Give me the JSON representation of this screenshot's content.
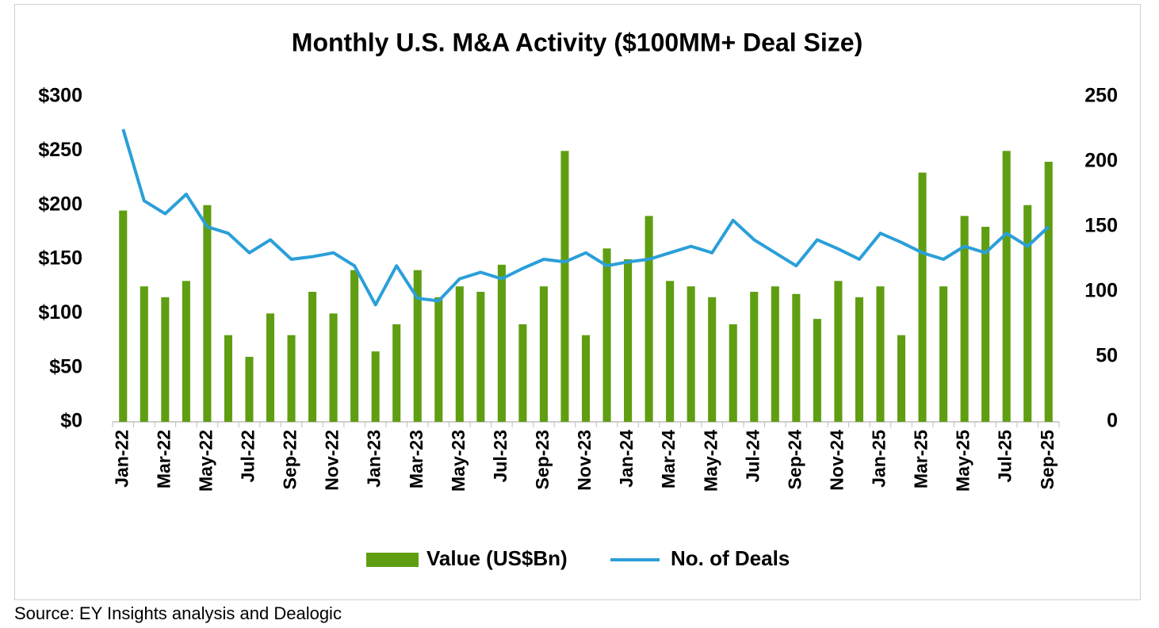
{
  "chart_data": {
    "type": "combo",
    "title": "Monthly U.S. M&A Activity ($100MM+ Deal Size)",
    "source": "Source: EY Insights analysis and Dealogic",
    "categories": [
      "Jan-22",
      null,
      "Mar-22",
      null,
      "May-22",
      null,
      "Jul-22",
      null,
      "Sep-22",
      null,
      "Nov-22",
      null,
      "Jan-23",
      null,
      "Mar-23",
      null,
      "May-23",
      null,
      "Jul-23",
      null,
      "Sep-23",
      null,
      "Nov-23",
      null,
      "Jan-24",
      null,
      "Mar-24",
      null,
      "May-24",
      null,
      "Jul-24",
      null,
      "Sep-24",
      null,
      "Nov-24",
      null,
      "Jan-25",
      null,
      "Mar-25",
      null,
      "May-25",
      null,
      "Jul-25",
      null,
      "Sep-25"
    ],
    "series": [
      {
        "name": "Value (US$Bn)",
        "type": "bar",
        "color": "#5f9e12",
        "values": [
          195,
          125,
          115,
          130,
          200,
          80,
          60,
          100,
          80,
          120,
          100,
          140,
          65,
          90,
          140,
          115,
          125,
          120,
          145,
          90,
          125,
          250,
          80,
          160,
          150,
          190,
          130,
          125,
          115,
          90,
          120,
          125,
          118,
          95,
          130,
          115,
          125,
          80,
          230,
          125,
          190,
          180,
          250,
          200,
          240
        ]
      },
      {
        "name": "No. of Deals",
        "type": "line",
        "axis": "y2",
        "color": "#2b9fd9",
        "values": [
          225,
          170,
          160,
          175,
          150,
          145,
          130,
          140,
          125,
          127,
          130,
          120,
          90,
          120,
          95,
          93,
          110,
          115,
          110,
          118,
          125,
          123,
          130,
          120,
          123,
          125,
          130,
          135,
          130,
          155,
          140,
          130,
          120,
          140,
          133,
          125,
          145,
          138,
          130,
          125,
          135,
          130,
          145,
          135,
          150
        ]
      }
    ],
    "ylim": [
      0,
      300
    ],
    "yticks": [
      {
        "value": 0,
        "label": "$0"
      },
      {
        "value": 50,
        "label": "$50"
      },
      {
        "value": 100,
        "label": "$100"
      },
      {
        "value": 150,
        "label": "$150"
      },
      {
        "value": 200,
        "label": "$200"
      },
      {
        "value": 250,
        "label": "$250"
      },
      {
        "value": 300,
        "label": "$300"
      }
    ],
    "y2lim": [
      0,
      250
    ],
    "y2ticks": [
      0,
      50,
      100,
      150,
      200,
      250
    ],
    "grid": false,
    "legend": "bottom"
  }
}
